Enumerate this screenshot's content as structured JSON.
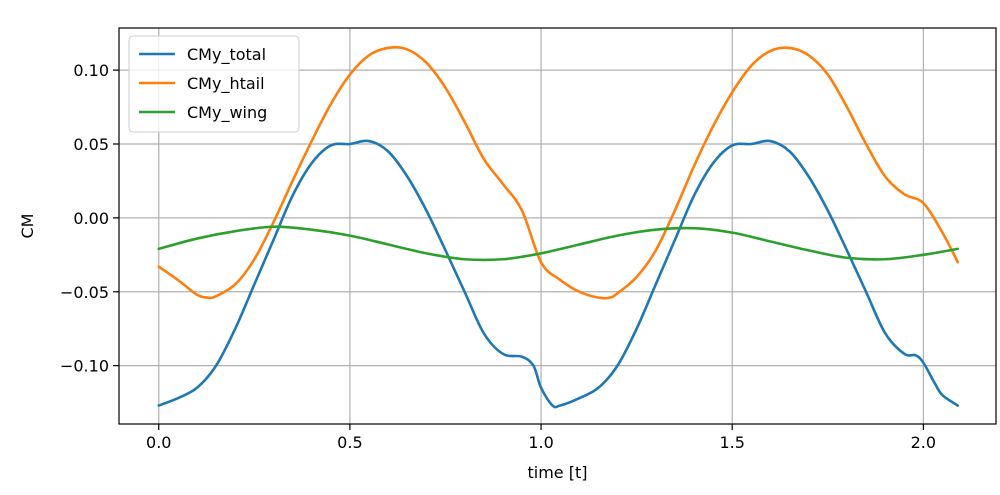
{
  "chart_data": {
    "type": "line",
    "xlabel": "time [t]",
    "ylabel": "CM",
    "xlim": [
      -0.104,
      2.19
    ],
    "ylim": [
      -0.1395,
      0.1285
    ],
    "xticks": [
      0.0,
      0.5,
      1.0,
      1.5,
      2.0
    ],
    "xtick_labels": [
      "0.0",
      "0.5",
      "1.0",
      "1.5",
      "2.0"
    ],
    "yticks": [
      -0.1,
      -0.05,
      0.0,
      0.05,
      0.1
    ],
    "ytick_labels": [
      "−0.10",
      "−0.05",
      "0.00",
      "0.05",
      "0.10"
    ],
    "grid": true,
    "legend_position": "top-left",
    "series": [
      {
        "name": "CMy_total",
        "color": "#1f77b4",
        "x": [
          0.0,
          0.05,
          0.1,
          0.15,
          0.2,
          0.25,
          0.3,
          0.35,
          0.4,
          0.45,
          0.5,
          0.55,
          0.6,
          0.65,
          0.7,
          0.75,
          0.8,
          0.85,
          0.9,
          0.95,
          0.98,
          1.0,
          1.03,
          1.05,
          1.1,
          1.15,
          1.2,
          1.25,
          1.3,
          1.35,
          1.4,
          1.45,
          1.5,
          1.55,
          1.6,
          1.65,
          1.7,
          1.75,
          1.8,
          1.85,
          1.9,
          1.95,
          1.98,
          2.0,
          2.03,
          2.05,
          2.09
        ],
        "y": [
          -0.127,
          -0.122,
          -0.115,
          -0.1,
          -0.075,
          -0.045,
          -0.015,
          0.015,
          0.037,
          0.049,
          0.05,
          0.052,
          0.045,
          0.028,
          0.005,
          -0.022,
          -0.05,
          -0.078,
          -0.092,
          -0.094,
          -0.1,
          -0.115,
          -0.127,
          -0.127,
          -0.122,
          -0.115,
          -0.1,
          -0.075,
          -0.045,
          -0.015,
          0.015,
          0.037,
          0.049,
          0.05,
          0.052,
          0.045,
          0.028,
          0.005,
          -0.022,
          -0.05,
          -0.078,
          -0.092,
          -0.093,
          -0.098,
          -0.112,
          -0.12,
          -0.127
        ]
      },
      {
        "name": "CMy_htail",
        "color": "#ff7f0e",
        "x": [
          0.0,
          0.05,
          0.1,
          0.13,
          0.15,
          0.2,
          0.25,
          0.3,
          0.35,
          0.4,
          0.45,
          0.5,
          0.55,
          0.6,
          0.65,
          0.7,
          0.75,
          0.8,
          0.85,
          0.9,
          0.95,
          1.0,
          1.05,
          1.1,
          1.15,
          1.18,
          1.2,
          1.25,
          1.3,
          1.35,
          1.4,
          1.45,
          1.5,
          1.55,
          1.6,
          1.65,
          1.7,
          1.75,
          1.8,
          1.85,
          1.9,
          1.95,
          2.0,
          2.05,
          2.09
        ],
        "y": [
          -0.033,
          -0.042,
          -0.052,
          -0.054,
          -0.053,
          -0.045,
          -0.028,
          -0.003,
          0.025,
          0.052,
          0.077,
          0.097,
          0.11,
          0.115,
          0.114,
          0.105,
          0.088,
          0.065,
          0.04,
          0.023,
          0.005,
          -0.03,
          -0.042,
          -0.05,
          -0.054,
          -0.054,
          -0.051,
          -0.04,
          -0.022,
          0.005,
          0.035,
          0.062,
          0.085,
          0.103,
          0.113,
          0.115,
          0.11,
          0.097,
          0.075,
          0.05,
          0.028,
          0.016,
          0.01,
          -0.01,
          -0.03
        ]
      },
      {
        "name": "CMy_wing",
        "color": "#2ca02c",
        "x": [
          0.0,
          0.1,
          0.2,
          0.3,
          0.4,
          0.5,
          0.6,
          0.7,
          0.8,
          0.9,
          1.0,
          1.1,
          1.2,
          1.3,
          1.4,
          1.5,
          1.6,
          1.7,
          1.8,
          1.9,
          2.0,
          2.09
        ],
        "y": [
          -0.021,
          -0.014,
          -0.009,
          -0.006,
          -0.008,
          -0.012,
          -0.018,
          -0.024,
          -0.028,
          -0.028,
          -0.024,
          -0.018,
          -0.012,
          -0.008,
          -0.007,
          -0.01,
          -0.016,
          -0.022,
          -0.027,
          -0.028,
          -0.025,
          -0.021
        ]
      }
    ]
  }
}
